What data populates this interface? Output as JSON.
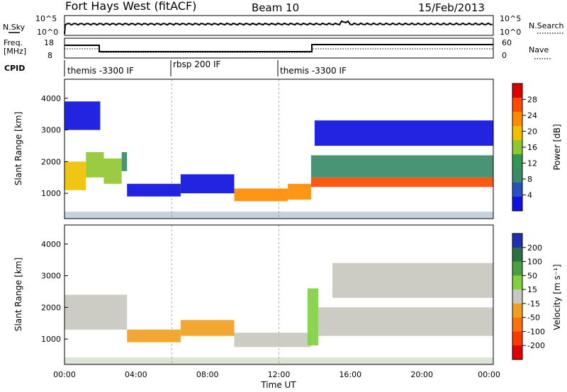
{
  "header": {
    "station": "Fort Hays West (fitACF)",
    "beam": "Beam 10",
    "date": "15/Feb/2013"
  },
  "strip": {
    "nsky_label": "N.Sky",
    "nsearch_label": "N.Search",
    "left_ticks": [
      "10^5",
      "10^0"
    ],
    "right_ticks": [
      "10^5",
      "10^0"
    ],
    "freq_label": "Freq.",
    "freq_unit": "[MHz]",
    "freq_ticks": [
      "18",
      "8"
    ],
    "nave_label": "Nave",
    "nave_ticks": [
      "60",
      "0"
    ],
    "cpid_label": "CPID"
  },
  "cpid_segments": [
    {
      "label": "themis -3300 IF",
      "start": 0,
      "end": 6
    },
    {
      "label": "rbsp 200 IF",
      "start": 6,
      "end": 12
    },
    {
      "label": "themis -3300 IF",
      "start": 12,
      "end": 24
    }
  ],
  "panels": {
    "ylabel": "Slant Range [km]",
    "xlabel": "Time UT",
    "xticks": [
      "00:00",
      "04:00",
      "08:00",
      "12:00",
      "16:00",
      "20:00",
      "00:00"
    ]
  },
  "colorbars": {
    "power": {
      "label": "Power [dB]",
      "ticks": [
        "28",
        "24",
        "20",
        "16",
        "12",
        "8",
        "4"
      ],
      "colors": [
        "#e00000",
        "#ff4a00",
        "#ff8c00",
        "#f0c000",
        "#90c830",
        "#2f9a4f",
        "#3a8a6a",
        "#2850c0",
        "#1010e0"
      ]
    },
    "velocity": {
      "label": "Velocity [m s⁻¹]",
      "ticks": [
        "200",
        "100",
        "50",
        "15",
        "-15",
        "-50",
        "-100",
        "-200"
      ],
      "colors": [
        "#2030b0",
        "#2a7040",
        "#4aa040",
        "#80d040",
        "#c8c8c0",
        "#f0a020",
        "#ff7010",
        "#ff3a00",
        "#e00000"
      ]
    }
  },
  "chart_data": [
    {
      "type": "heatmap",
      "title": "Power",
      "xlabel": "Time UT",
      "ylabel": "Slant Range [km]",
      "xlim": [
        0,
        24
      ],
      "ylim": [
        200,
        4600
      ],
      "yticks": [
        1000,
        2000,
        3000,
        4000
      ],
      "colorbar": "Power [dB]",
      "bands": [
        {
          "t": [
            0,
            1.2
          ],
          "r": [
            1100,
            2000
          ],
          "value": 20
        },
        {
          "t": [
            1.2,
            2.2
          ],
          "r": [
            1500,
            2300
          ],
          "value": 16
        },
        {
          "t": [
            2.2,
            3.2
          ],
          "r": [
            1300,
            2100
          ],
          "value": 16
        },
        {
          "t": [
            3.2,
            3.5
          ],
          "r": [
            1700,
            2300
          ],
          "value": 10
        },
        {
          "t": [
            3.5,
            6.5
          ],
          "r": [
            900,
            1300
          ],
          "value": 6
        },
        {
          "t": [
            6.5,
            9.5
          ],
          "r": [
            1000,
            1600
          ],
          "value": 6
        },
        {
          "t": [
            9.5,
            12.5
          ],
          "r": [
            750,
            1150
          ],
          "value": 24
        },
        {
          "t": [
            12.5,
            13.8
          ],
          "r": [
            800,
            1300
          ],
          "value": 24
        },
        {
          "t": [
            13.8,
            24
          ],
          "r": [
            1200,
            1500
          ],
          "value": 28
        },
        {
          "t": [
            13.8,
            24
          ],
          "r": [
            1500,
            2200
          ],
          "value": 12
        },
        {
          "t": [
            14,
            24
          ],
          "r": [
            2500,
            3300
          ],
          "value": 6
        },
        {
          "t": [
            0,
            2
          ],
          "r": [
            3000,
            3900
          ],
          "value": 4
        }
      ]
    },
    {
      "type": "heatmap",
      "title": "Velocity",
      "xlabel": "Time UT",
      "ylabel": "Slant Range [km]",
      "xlim": [
        0,
        24
      ],
      "ylim": [
        200,
        4600
      ],
      "yticks": [
        1000,
        2000,
        3000,
        4000
      ],
      "colorbar": "Velocity [m s^-1]",
      "bands": [
        {
          "t": [
            0,
            3.5
          ],
          "r": [
            1300,
            2400
          ],
          "value": 0
        },
        {
          "t": [
            3.5,
            6.5
          ],
          "r": [
            900,
            1300
          ],
          "value": -50
        },
        {
          "t": [
            6.5,
            9.5
          ],
          "r": [
            1100,
            1600
          ],
          "value": -50
        },
        {
          "t": [
            9.5,
            13.8
          ],
          "r": [
            750,
            1200
          ],
          "value": 0
        },
        {
          "t": [
            13.6,
            14.2
          ],
          "r": [
            800,
            2600
          ],
          "value": 30
        },
        {
          "t": [
            14.2,
            24
          ],
          "r": [
            1100,
            2000
          ],
          "value": 0
        },
        {
          "t": [
            15,
            24
          ],
          "r": [
            2300,
            3400
          ],
          "value": 0
        }
      ]
    }
  ]
}
